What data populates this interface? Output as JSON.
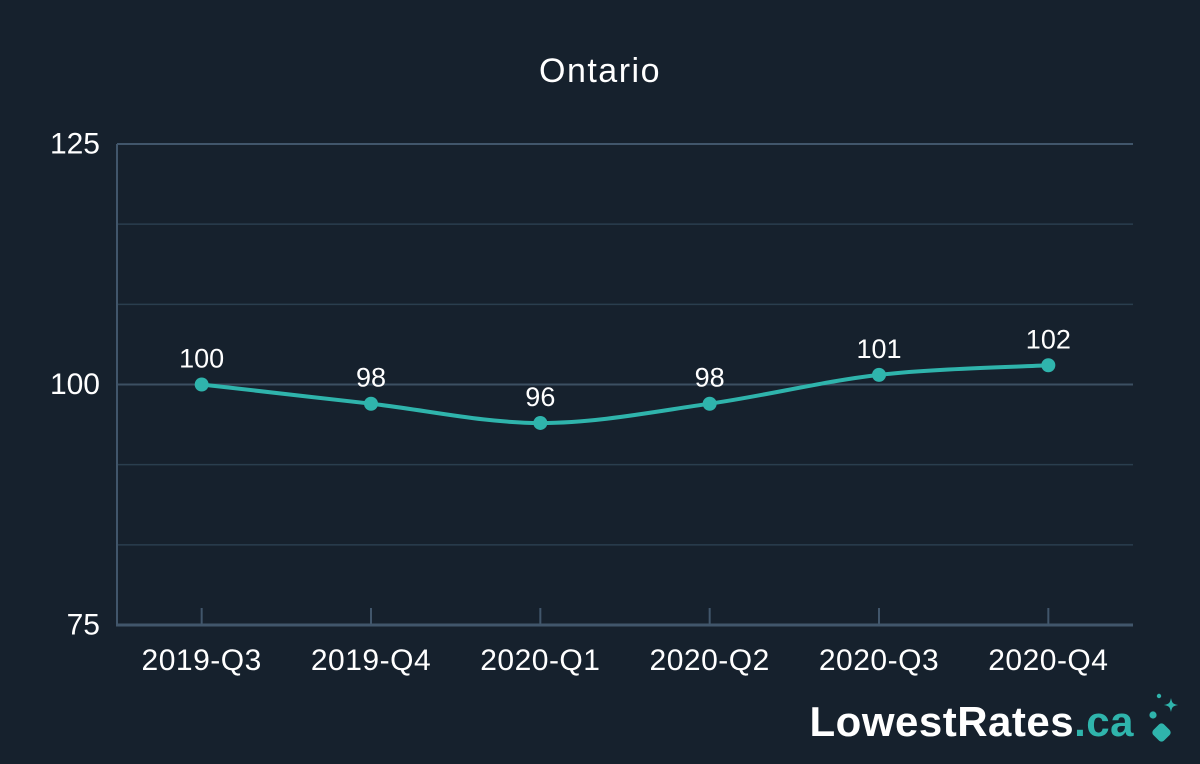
{
  "title": "Ontario",
  "colors": {
    "background": "#16212d",
    "line": "#2fb4ac",
    "point": "#2fb4ac",
    "grid_minor": "#2a3e4e",
    "grid_major": "#3c5062",
    "axis": "#41566b",
    "text": "#ffffff"
  },
  "chart_data": {
    "type": "line",
    "title": "Ontario",
    "categories": [
      "2019-Q3",
      "2019-Q4",
      "2020-Q1",
      "2020-Q2",
      "2020-Q3",
      "2020-Q4"
    ],
    "values": [
      100,
      98,
      96,
      98,
      101,
      102
    ],
    "point_labels": [
      "100",
      "98",
      "96",
      "98",
      "101",
      "102"
    ],
    "xlabel": "",
    "ylabel": "",
    "ylim": [
      75,
      125
    ],
    "yticks": [
      75,
      100,
      125
    ],
    "ytick_labels": [
      "75",
      "100",
      "125"
    ],
    "grid": true,
    "grid_divisions": 6,
    "legend": "none",
    "line_style": "smooth",
    "markers": true
  },
  "logo": {
    "brand": "LowestRates",
    "tld": ".ca",
    "icon": "sparkle-diamond-icon"
  }
}
